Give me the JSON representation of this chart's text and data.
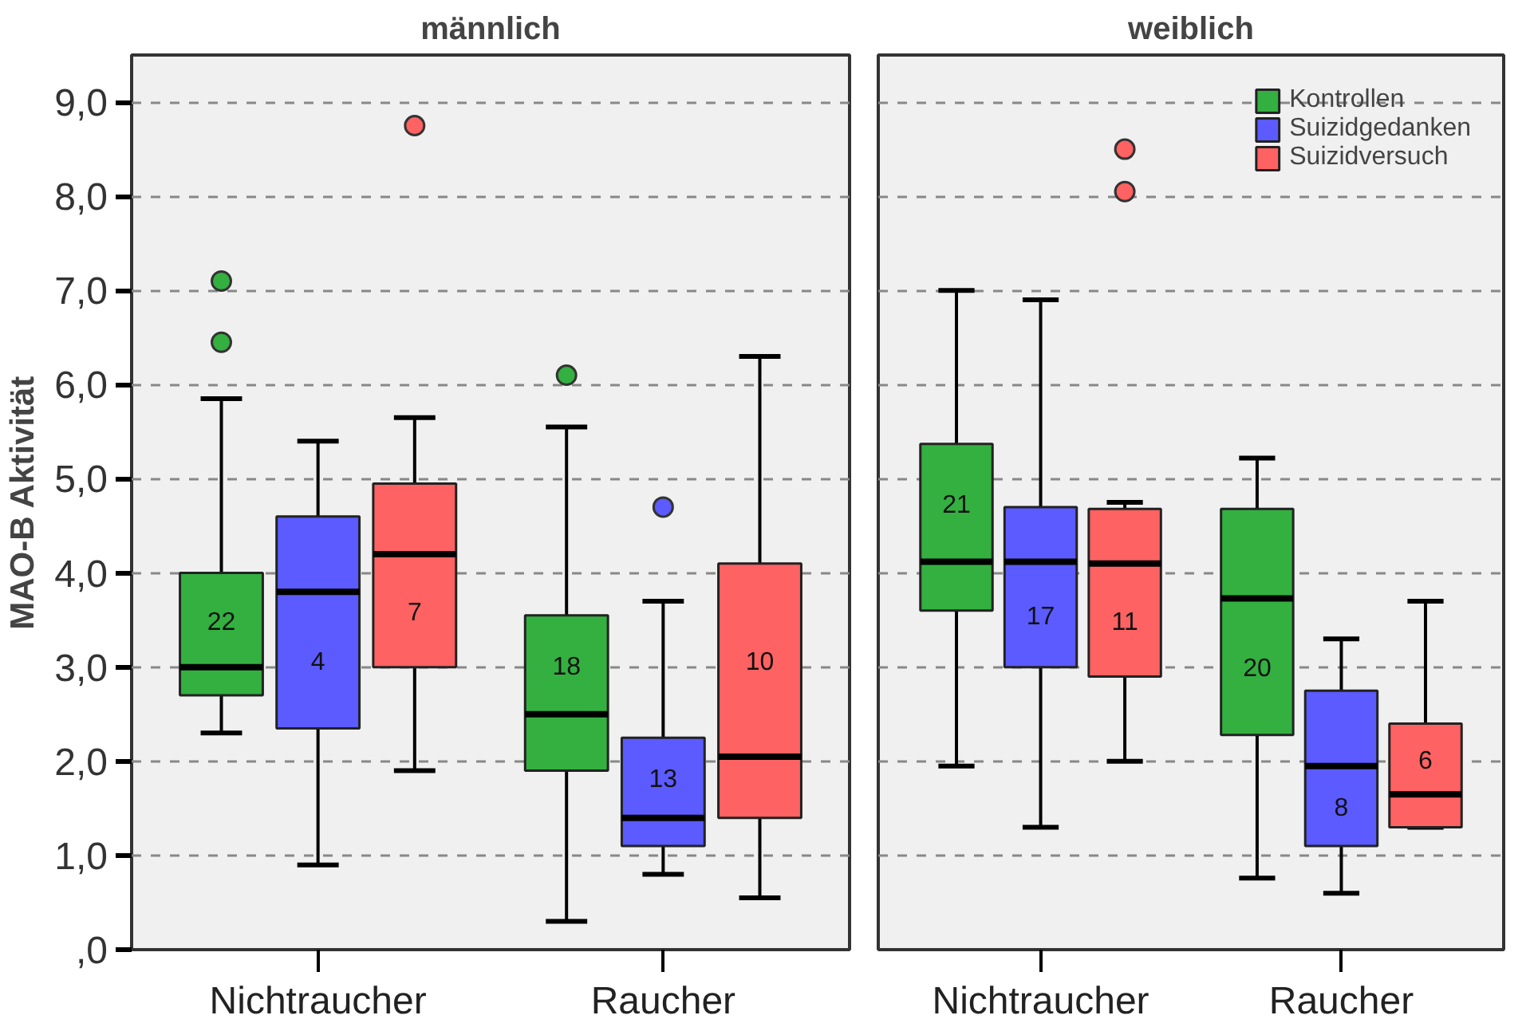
{
  "chart_data": [
    {
      "type": "box",
      "title": "männlich",
      "ylabel": "MAO-B Aktivität",
      "categories": [
        "Nichtraucher",
        "Raucher"
      ],
      "ylim": [
        0,
        9.5
      ],
      "yticks": [
        {
          "value": 0,
          "label": ",0"
        },
        {
          "value": 1,
          "label": "1,0"
        },
        {
          "value": 2,
          "label": "2,0"
        },
        {
          "value": 3,
          "label": "3,0"
        },
        {
          "value": 4,
          "label": "4,0"
        },
        {
          "value": 5,
          "label": "5,0"
        },
        {
          "value": 6,
          "label": "6,0"
        },
        {
          "value": 7,
          "label": "7,0"
        },
        {
          "value": 8,
          "label": "8,0"
        },
        {
          "value": 9,
          "label": "9,0"
        }
      ],
      "grid": "y",
      "legend": false,
      "series": [
        {
          "color": "#33b040",
          "value_labels": [
            "22",
            "18"
          ],
          "boxes": [
            {
              "low": 2.3,
              "q1": 2.7,
              "median": 3.0,
              "q3": 4.0,
              "high": 5.85,
              "outliers": [
                6.45,
                7.1
              ]
            },
            {
              "low": 0.3,
              "q1": 1.9,
              "median": 2.5,
              "q3": 3.55,
              "high": 5.55,
              "outliers": [
                6.1
              ]
            }
          ]
        },
        {
          "color": "#5b5bff",
          "value_labels": [
            "4",
            "13"
          ],
          "boxes": [
            {
              "low": 0.9,
              "q1": 2.35,
              "median": 3.8,
              "q3": 4.6,
              "high": 5.4
            },
            {
              "low": 0.8,
              "q1": 1.1,
              "median": 1.4,
              "q3": 2.25,
              "high": 3.7,
              "outliers": [
                4.7
              ]
            }
          ]
        },
        {
          "color": "#ff6262",
          "value_labels": [
            "7",
            "10"
          ],
          "boxes": [
            {
              "low": 1.9,
              "q1": 3.0,
              "median": 4.2,
              "q3": 4.95,
              "high": 5.65,
              "outliers": [
                8.75
              ]
            },
            {
              "low": 0.55,
              "q1": 1.4,
              "median": 2.05,
              "q3": 4.1,
              "high": 6.3
            }
          ]
        }
      ]
    },
    {
      "type": "box",
      "title": "weiblich",
      "categories": [
        "Nichtraucher",
        "Raucher"
      ],
      "ylim": [
        0,
        9.5
      ],
      "grid": "y",
      "legend": "top right",
      "tick_labels": "x",
      "yticks": [
        0,
        1,
        2,
        3,
        4,
        5,
        6,
        7,
        8,
        9
      ],
      "series": [
        {
          "name": "Kontrollen",
          "color": "#33b040",
          "value_labels": [
            "21",
            "20"
          ],
          "boxes": [
            {
              "low": 1.95,
              "q1": 3.6,
              "median": 4.12,
              "q3": 5.37,
              "high": 7.0
            },
            {
              "low": 0.76,
              "q1": 2.28,
              "median": 3.73,
              "q3": 4.68,
              "high": 5.22
            }
          ]
        },
        {
          "name": "Suizidgedanken",
          "color": "#5b5bff",
          "value_labels": [
            "17",
            "8"
          ],
          "boxes": [
            {
              "low": 1.3,
              "q1": 3.0,
              "median": 4.12,
              "q3": 4.7,
              "high": 6.9
            },
            {
              "low": 0.6,
              "q1": 1.1,
              "median": 1.95,
              "q3": 2.75,
              "high": 3.3
            }
          ]
        },
        {
          "name": "Suizidversuch",
          "color": "#ff6262",
          "value_labels": [
            "11",
            "6"
          ],
          "boxes": [
            {
              "low": 2.0,
              "q1": 2.9,
              "median": 4.1,
              "q3": 4.68,
              "high": 4.75,
              "outliers": [
                8.05,
                8.5
              ]
            },
            {
              "low": 1.3,
              "q1": 1.3,
              "median": 1.65,
              "q3": 2.4,
              "high": 3.7
            }
          ]
        }
      ]
    }
  ]
}
